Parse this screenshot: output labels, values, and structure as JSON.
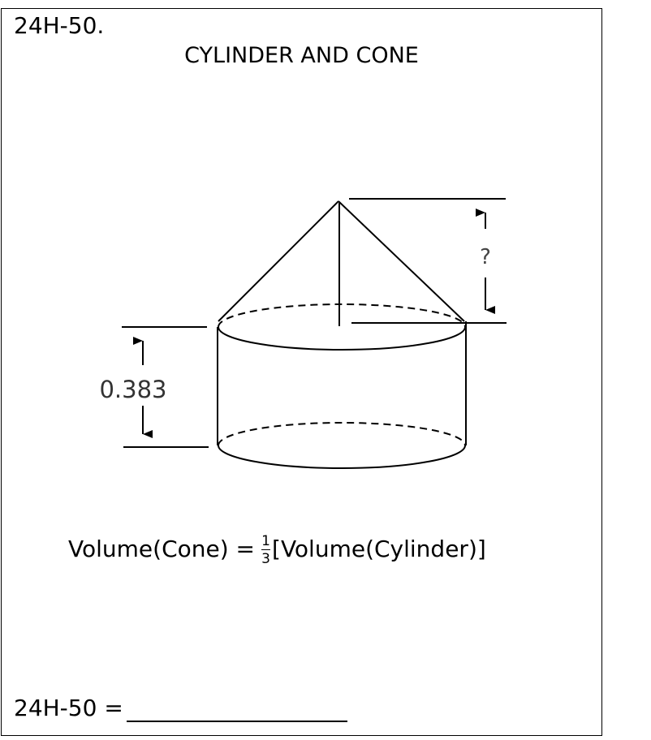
{
  "problem": {
    "number": "24H-50.",
    "title": "CYLINDER AND CONE"
  },
  "diagram": {
    "cylinder_height_label": "0.383",
    "cone_height_label": "?"
  },
  "formula": {
    "lhs": "Volume(Cone) =",
    "numerator": "1",
    "denominator": "3",
    "rhs": "[Volume(Cylinder)]"
  },
  "answer": {
    "label": "24H-50 ="
  }
}
